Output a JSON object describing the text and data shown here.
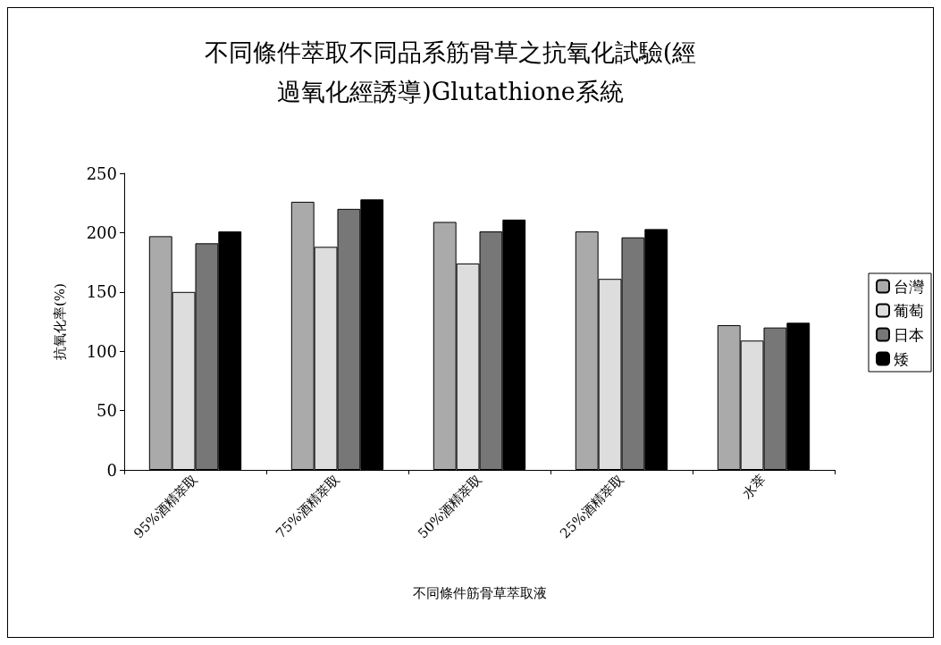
{
  "chart_data": {
    "type": "bar",
    "title": "不同條件萃取不同品系筋骨草之抗氧化試驗(經過氧化經誘導)Glutathione系統",
    "xlabel": "不同條件筋骨草萃取液",
    "ylabel": "抗氧化率(%)",
    "categories": [
      "95%酒精萃取",
      "75%酒精萃取",
      "50%酒精萃取",
      "25%酒精萃取",
      "水萃"
    ],
    "series": [
      {
        "name": "台灣",
        "color": "#aaaaaa",
        "values": [
          197,
          226,
          209,
          201,
          122
        ]
      },
      {
        "name": "葡萄",
        "color": "#dddddd",
        "values": [
          150,
          188,
          174,
          161,
          109
        ]
      },
      {
        "name": "日本",
        "color": "#777777",
        "values": [
          191,
          220,
          201,
          196,
          120
        ]
      },
      {
        "name": "矮",
        "color": "#000000",
        "values": [
          201,
          228,
          211,
          203,
          124
        ]
      }
    ],
    "ylim": [
      0,
      250
    ],
    "yticks": [
      0,
      50,
      100,
      150,
      200,
      250
    ],
    "grid": false,
    "legend": "right"
  }
}
